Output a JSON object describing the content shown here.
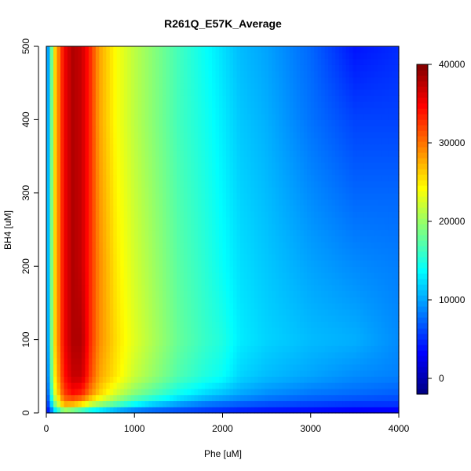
{
  "chart_data": {
    "type": "heatmap",
    "title": "R261Q_E57K_Average",
    "xlabel": "Phe [uM]",
    "ylabel": "BH4 [uM]",
    "xlim": [
      0,
      4000
    ],
    "ylim": [
      0,
      500
    ],
    "x_ticks": [
      0,
      1000,
      2000,
      3000,
      4000
    ],
    "y_ticks": [
      0,
      100,
      200,
      300,
      400,
      500
    ],
    "x_tick_labels": [
      "0",
      "1000",
      "2000",
      "3000",
      "4000"
    ],
    "y_tick_labels": [
      "0",
      "100",
      "200",
      "300",
      "400",
      "500"
    ],
    "colorbar": {
      "range": [
        -2000,
        40000
      ],
      "ticks": [
        0,
        10000,
        20000,
        30000,
        40000
      ],
      "tick_labels": [
        "0",
        "10000",
        "20000",
        "30000",
        "40000"
      ],
      "palette": [
        "#00007f",
        "#0000ff",
        "#007fff",
        "#00ffff",
        "#7fff7f",
        "#ffff00",
        "#ff7f00",
        "#ff0000",
        "#7f0000"
      ]
    },
    "x": [
      0,
      50,
      100,
      200,
      300,
      400,
      500,
      600,
      800,
      1000,
      1200,
      1500,
      1800,
      2000,
      2200,
      2500,
      3000,
      3500,
      4000
    ],
    "y": [
      0,
      10,
      25,
      50,
      100,
      200,
      300,
      400,
      500
    ],
    "z": [
      [
        2000,
        6000,
        10000,
        16000,
        14000,
        12000,
        10000,
        9000,
        7000,
        6000,
        5500,
        5000,
        4500,
        4000,
        3500,
        3000,
        2500,
        2000,
        2000
      ],
      [
        3000,
        10000,
        18000,
        27000,
        26000,
        24000,
        21000,
        19000,
        16000,
        13000,
        11000,
        9000,
        7500,
        7000,
        6500,
        6000,
        5500,
        5000,
        5000
      ],
      [
        4000,
        14000,
        23000,
        32000,
        34000,
        33000,
        29000,
        26000,
        22000,
        19000,
        17000,
        14000,
        12000,
        11000,
        10000,
        9000,
        8000,
        7500,
        7000
      ],
      [
        5000,
        16000,
        25000,
        34000,
        37000,
        37000,
        32000,
        28000,
        25000,
        22000,
        20000,
        17000,
        15000,
        14000,
        12000,
        11000,
        10000,
        9000,
        8500
      ],
      [
        6000,
        17000,
        26000,
        35000,
        38000,
        38000,
        33000,
        29000,
        25500,
        23000,
        21000,
        18000,
        16000,
        15000,
        13000,
        12000,
        11000,
        10500,
        9000
      ],
      [
        7000,
        17000,
        26000,
        35000,
        38000,
        37000,
        33000,
        29000,
        25000,
        22500,
        20500,
        17500,
        15500,
        14000,
        12500,
        11500,
        10000,
        9000,
        8500
      ],
      [
        7000,
        17000,
        26000,
        35000,
        38000,
        37000,
        33000,
        28500,
        24500,
        22000,
        20000,
        17000,
        15000,
        13500,
        12000,
        11000,
        9000,
        7500,
        7500
      ],
      [
        6500,
        16500,
        26000,
        35000,
        38000,
        37000,
        33000,
        28000,
        24000,
        21500,
        19500,
        16500,
        14500,
        13000,
        11500,
        10500,
        8000,
        6000,
        6000
      ],
      [
        6000,
        16000,
        26000,
        35000,
        38000,
        37000,
        33000,
        28000,
        24000,
        21500,
        19500,
        16500,
        14000,
        12500,
        11000,
        10000,
        7500,
        4000,
        5000
      ]
    ]
  }
}
